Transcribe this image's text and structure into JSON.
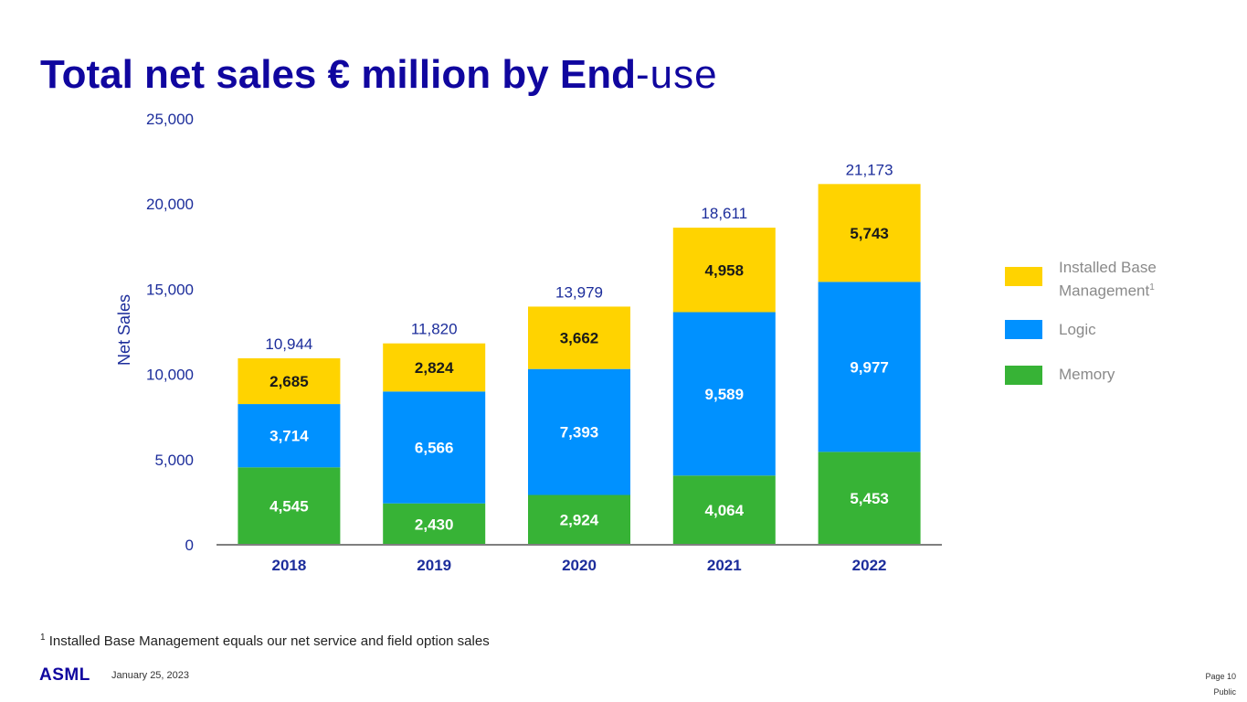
{
  "slide": {
    "title_bold": "Total net sales € million by End",
    "title_light": "-use",
    "footnote_marker": "1",
    "footnote_text": "Installed Base Management equals our net service and field option sales",
    "logo_text": "ASML",
    "date": "January 25, 2023",
    "page_label": "Page 10",
    "classification": "Public"
  },
  "legend": {
    "installed_base_line1": "Installed Base",
    "installed_base_line2": "Management",
    "installed_base_sup": "1",
    "logic": "Logic",
    "memory": "Memory"
  },
  "colors": {
    "title": "#10069f",
    "memory": "#37b336",
    "logic": "#0091ff",
    "installed_base": "#ffd300",
    "axis_text": "#1c2d9b"
  },
  "chart_data": {
    "type": "bar",
    "stacked": true,
    "title": "Total net sales € million by End-use",
    "ylabel": "Net Sales",
    "xlabel": "",
    "ylim": [
      0,
      25000
    ],
    "yticks": [
      0,
      5000,
      10000,
      15000,
      20000,
      25000
    ],
    "ytick_labels": [
      "0",
      "5,000",
      "10,000",
      "15,000",
      "20,000",
      "25,000"
    ],
    "categories": [
      "2018",
      "2019",
      "2020",
      "2021",
      "2022"
    ],
    "series": [
      {
        "name": "Memory",
        "values": [
          4545,
          2430,
          2924,
          4064,
          5453
        ],
        "labels": [
          "4,545",
          "2,430",
          "2,924",
          "4,064",
          "5,453"
        ],
        "color": "#37b336",
        "label_color": "#ffffff"
      },
      {
        "name": "Logic",
        "values": [
          3714,
          6566,
          7393,
          9589,
          9977
        ],
        "labels": [
          "3,714",
          "6,566",
          "7,393",
          "9,589",
          "9,977"
        ],
        "color": "#0091ff",
        "label_color": "#ffffff"
      },
      {
        "name": "Installed Base Management",
        "values": [
          2685,
          2824,
          3662,
          4958,
          5743
        ],
        "labels": [
          "2,685",
          "2,824",
          "3,662",
          "4,958",
          "5,743"
        ],
        "color": "#ffd300",
        "label_color": "#1a1a1a"
      }
    ],
    "totals": [
      10944,
      11820,
      13979,
      18611,
      21173
    ],
    "total_labels": [
      "10,944",
      "11,820",
      "13,979",
      "18,611",
      "21,173"
    ],
    "legend_position": "right"
  }
}
